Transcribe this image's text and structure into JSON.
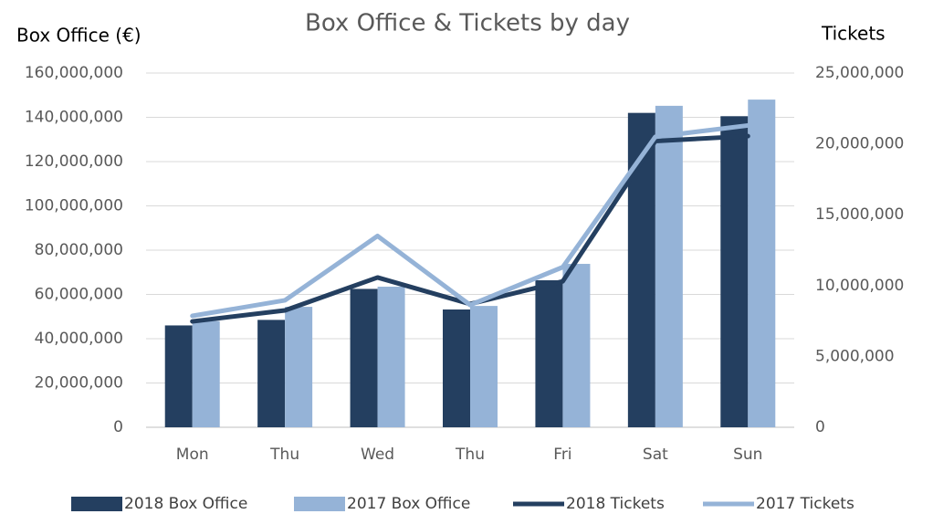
{
  "chart_data": {
    "type": "bar",
    "title": "Box Office & Tickets by day",
    "y_label": "Box Office (€)",
    "y2_label": "Tickets",
    "categories": [
      "Mon",
      "Thu",
      "Wed",
      "Thu",
      "Fri",
      "Sat",
      "Sun"
    ],
    "series": [
      {
        "name": "2018 Box Office",
        "type": "bar",
        "color": "#243f60",
        "values": [
          46000000,
          48500000,
          62500000,
          53200000,
          66400000,
          142000000,
          140500000
        ]
      },
      {
        "name": "2017 Box Office",
        "type": "bar",
        "color": "#95b3d7",
        "values": [
          48000000,
          54400000,
          63500000,
          54800000,
          73800000,
          145200000,
          148000000
        ]
      },
      {
        "name": "2018 Tickets",
        "type": "line",
        "axis": "y2",
        "color": "#243f60",
        "values": [
          7470000,
          8250000,
          10570000,
          8700000,
          10300000,
          20200000,
          20550000
        ]
      },
      {
        "name": "2017 Tickets",
        "type": "line",
        "axis": "y2",
        "color": "#95b3d7",
        "values": [
          7860000,
          8960000,
          13500000,
          8630000,
          11300000,
          20500000,
          21300000
        ]
      }
    ],
    "ylim": [
      0,
      160000000
    ],
    "yticks": [
      0,
      {
        "value": 20000000,
        "label": "20,000,000"
      },
      {
        "value": 40000000,
        "label": "40,000,000"
      },
      {
        "value": 60000000,
        "label": "60,000,000"
      },
      {
        "value": 80000000,
        "label": "80,000,000"
      },
      {
        "value": 100000000,
        "label": "100,000,000"
      },
      {
        "value": 120000000,
        "label": "120,000,000"
      },
      {
        "value": 140000000,
        "label": "140,000,000"
      },
      {
        "value": 160000000,
        "label": "160,000,000"
      }
    ],
    "y2lim": [
      0,
      25000000
    ],
    "y2ticks": [
      0,
      {
        "value": 5000000,
        "label": "5,000,000"
      },
      {
        "value": 10000000,
        "label": "10,000,000"
      },
      {
        "value": 15000000,
        "label": "15,000,000"
      },
      {
        "value": 20000000,
        "label": "20,000,000"
      },
      {
        "value": 25000000,
        "label": "25,000,000"
      }
    ],
    "grid": true,
    "legend": "bottom"
  }
}
